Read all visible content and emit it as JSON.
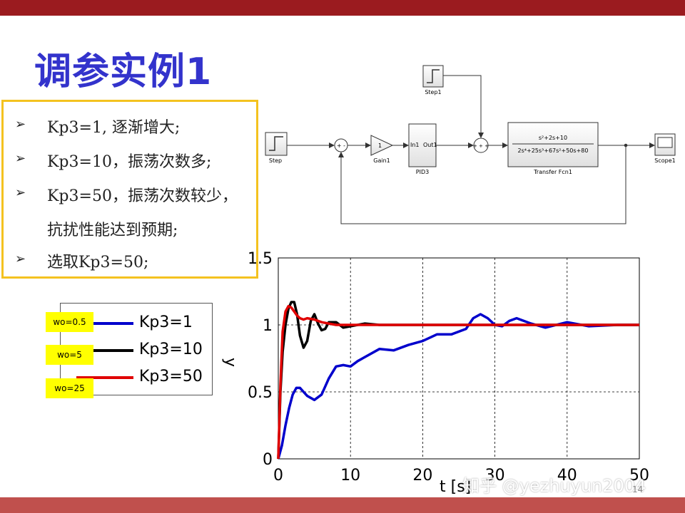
{
  "slide": {
    "title": "调参实例1",
    "page_number": "14",
    "watermark": "知乎 @yezhuyun2004"
  },
  "bullets": [
    {
      "arrow": "➢",
      "text": "Kp3=1, 逐渐增大;"
    },
    {
      "arrow": "➢",
      "text": "Kp3=10，振荡次数多;"
    },
    {
      "arrow": "➢",
      "text": "Kp3=50，振荡次数较少，"
    },
    {
      "arrow": "",
      "text": "抗扰性能达到预期;"
    },
    {
      "arrow": "➢",
      "text": "选取Kp3=50;"
    }
  ],
  "simulink": {
    "step1": "Step1",
    "step": "Step",
    "gain_value": "1",
    "gain": "Gain1",
    "pid_in": "In1",
    "pid_out": "Out1",
    "pid": "PID3",
    "sum1_signs": "+ -",
    "sum2_signs": "+ + +",
    "tf_numerator": "s²+2s+10",
    "tf_denominator": "2s⁴+25s³+67s²+50s+80",
    "tf": "Transfer Fcn1",
    "scope": "Scope1"
  },
  "legend_tags": [
    "wo=0.5",
    "wo=5",
    "wo=25"
  ],
  "colors": {
    "title": "#3333cc",
    "top_bar": "#9b1b1f",
    "bottom_bar": "#c0504d",
    "box_border": "#f4c21f",
    "series_kp1": "#0000cc",
    "series_kp10": "#000000",
    "series_kp50": "#e00000",
    "tag_bg": "#ffff00"
  },
  "chart_data": {
    "type": "line",
    "title": "",
    "xlabel": "t [s]",
    "ylabel": "y",
    "xlim": [
      0,
      50
    ],
    "ylim": [
      0,
      1.5
    ],
    "xticks": [
      "0",
      "10",
      "20",
      "30",
      "40",
      "50"
    ],
    "yticks": [
      "0",
      "0.5",
      "1",
      "1.5"
    ],
    "grid": true,
    "legend_position": "left, outside plot",
    "series": [
      {
        "name": "Kp3=1",
        "color": "#0000cc",
        "x": [
          0,
          0.5,
          1,
          1.5,
          2,
          2.5,
          3,
          3.5,
          4,
          5,
          6,
          7,
          8,
          9,
          10,
          11,
          12,
          14,
          16,
          18,
          20,
          22,
          24,
          26,
          27,
          28,
          29,
          30,
          31,
          32,
          33,
          35,
          37,
          40,
          43,
          47,
          50
        ],
        "y": [
          0,
          0.1,
          0.25,
          0.38,
          0.48,
          0.53,
          0.53,
          0.5,
          0.47,
          0.44,
          0.48,
          0.6,
          0.69,
          0.7,
          0.69,
          0.73,
          0.76,
          0.82,
          0.81,
          0.85,
          0.88,
          0.93,
          0.93,
          0.97,
          1.05,
          1.08,
          1.05,
          1.0,
          0.99,
          1.03,
          1.05,
          1.01,
          0.98,
          1.02,
          0.99,
          1.0,
          1.0
        ]
      },
      {
        "name": "Kp3=10",
        "color": "#000000",
        "x": [
          0,
          0.3,
          0.6,
          1.0,
          1.4,
          1.8,
          2.2,
          2.6,
          3.0,
          3.5,
          4.0,
          4.5,
          5.0,
          5.5,
          6.0,
          6.5,
          7.0,
          8.0,
          9.0,
          10.0,
          12.0,
          14.0,
          17.0,
          20.0,
          30.0,
          40.0,
          50.0
        ],
        "y": [
          0,
          0.5,
          0.8,
          1.0,
          1.12,
          1.17,
          1.17,
          1.08,
          0.92,
          0.83,
          0.88,
          1.03,
          1.08,
          1.01,
          0.96,
          0.97,
          1.02,
          1.02,
          0.98,
          0.99,
          1.01,
          1.0,
          1.0,
          1.0,
          1.0,
          1.0,
          1.0
        ]
      },
      {
        "name": "Kp3=50",
        "color": "#e00000",
        "x": [
          0,
          0.3,
          0.6,
          1.0,
          1.4,
          1.8,
          2.2,
          2.6,
          3.0,
          3.5,
          4.0,
          5.0,
          6.0,
          7.0,
          8.0,
          10.0,
          20.0,
          30.0,
          40.0,
          50.0
        ],
        "y": [
          0,
          0.55,
          0.95,
          1.1,
          1.14,
          1.13,
          1.1,
          1.07,
          1.05,
          1.04,
          1.05,
          1.04,
          1.02,
          1.01,
          1.0,
          1.0,
          1.0,
          1.0,
          1.0,
          1.0
        ]
      }
    ]
  }
}
